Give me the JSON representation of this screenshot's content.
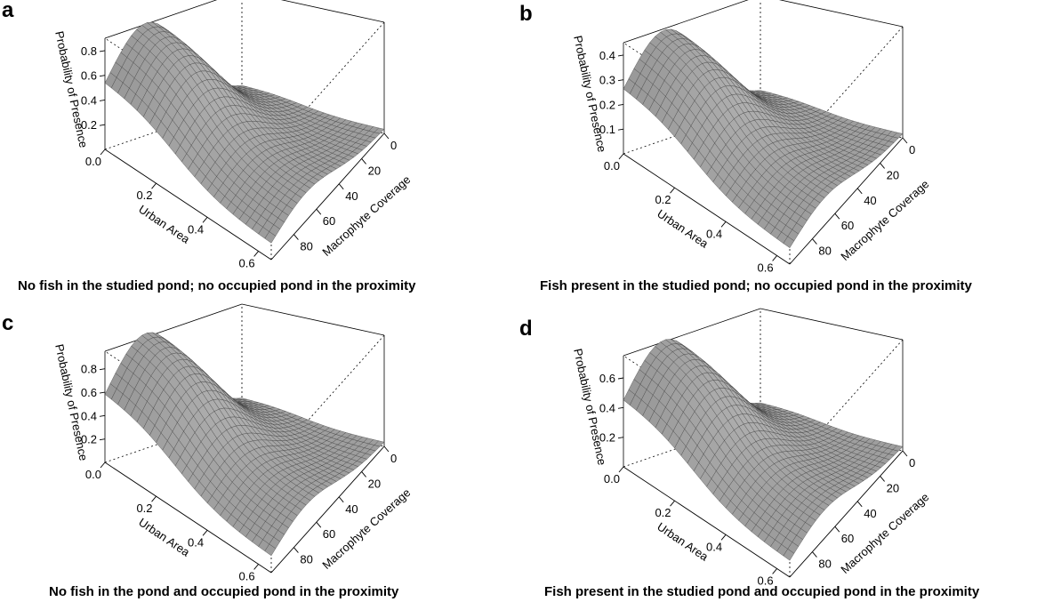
{
  "chart_data": [
    {
      "type": "surface3d",
      "panel_label": "a",
      "caption": "No fish in the studied pond; no occupied pond in the proximity",
      "zlabel": "Probability of Presence",
      "xlabel": "Urban Area",
      "ylabel": "Macrophyte Coverage",
      "x_ticks": [
        "0.0",
        "0.2",
        "0.4",
        "0.6"
      ],
      "y_ticks": [
        "0",
        "20",
        "40",
        "60",
        "80"
      ],
      "z_ticks": [
        "0.2",
        "0.4",
        "0.6",
        "0.8"
      ],
      "xlim": [
        0,
        0.65
      ],
      "ylim": [
        0,
        100
      ],
      "zlim": [
        0,
        0.9
      ],
      "peak": 0.86,
      "peak_macrophyte": 30
    },
    {
      "type": "surface3d",
      "panel_label": "b",
      "caption": "Fish present in the studied pond; no occupied pond in the proximity",
      "zlabel": "Probability of Presence",
      "xlabel": "Urban Area",
      "ylabel": "Macrophyte Coverage",
      "x_ticks": [
        "0.0",
        "0.2",
        "0.4",
        "0.6"
      ],
      "y_ticks": [
        "0",
        "20",
        "40",
        "60",
        "80"
      ],
      "z_ticks": [
        "0.1",
        "0.2",
        "0.3",
        "0.4"
      ],
      "xlim": [
        0,
        0.65
      ],
      "ylim": [
        0,
        100
      ],
      "zlim": [
        0,
        0.45
      ],
      "peak": 0.42,
      "peak_macrophyte": 30
    },
    {
      "type": "surface3d",
      "panel_label": "c",
      "caption": "No fish in the pond and occupied pond in the proximity",
      "zlabel": "Probability of Presence",
      "xlabel": "Urban Area",
      "ylabel": "Macrophyte Coverage",
      "x_ticks": [
        "0.0",
        "0.2",
        "0.4",
        "0.6"
      ],
      "y_ticks": [
        "0",
        "20",
        "40",
        "60",
        "80"
      ],
      "z_ticks": [
        "0.2",
        "0.4",
        "0.6",
        "0.8"
      ],
      "xlim": [
        0,
        0.65
      ],
      "ylim": [
        0,
        100
      ],
      "zlim": [
        0,
        0.95
      ],
      "peak": 0.93,
      "peak_macrophyte": 30
    },
    {
      "type": "surface3d",
      "panel_label": "d",
      "caption": "Fish present in the studied pond and occupied pond in the proximity",
      "zlabel": "Probability of Presence",
      "xlabel": "Urban Area",
      "ylabel": "Macrophyte Coverage",
      "x_ticks": [
        "0.0",
        "0.2",
        "0.4",
        "0.6"
      ],
      "y_ticks": [
        "0",
        "20",
        "40",
        "60",
        "80"
      ],
      "z_ticks": [
        "0.2",
        "0.4",
        "0.6"
      ],
      "xlim": [
        0,
        0.65
      ],
      "ylim": [
        0,
        100
      ],
      "zlim": [
        0,
        0.75
      ],
      "peak": 0.72,
      "peak_macrophyte": 30
    }
  ],
  "colors": {
    "surface_light": "#c4c4c4",
    "surface_dark": "#6e6e6e",
    "mesh": "#3a3a3a",
    "axes": "#000000"
  }
}
